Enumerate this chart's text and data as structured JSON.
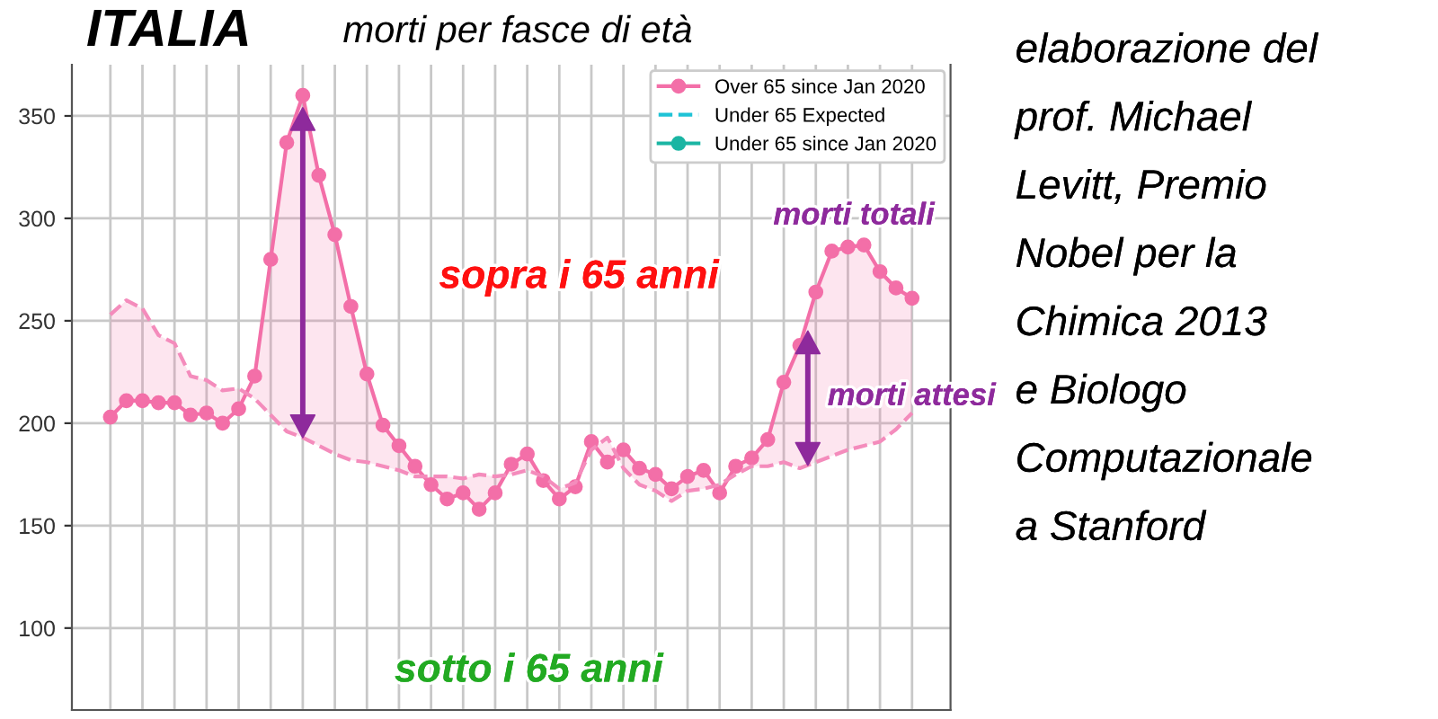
{
  "chart_data": {
    "type": "line",
    "title": "ITALIA",
    "subtitle": "morti per fasce di età",
    "categories": [
      null,
      null,
      null,
      null,
      null,
      null,
      null,
      null,
      null,
      null,
      null,
      null,
      null,
      null,
      null,
      null,
      null,
      null,
      null,
      null,
      null,
      null,
      null,
      null,
      null,
      null,
      null,
      null,
      null,
      null,
      null,
      null,
      null,
      null,
      null,
      null,
      null,
      null,
      null,
      null,
      null,
      null,
      null,
      null,
      null,
      null,
      null,
      null,
      null,
      null,
      null
    ],
    "series": [
      {
        "name": "Over 65 since Jan 2020",
        "color": "#f36fa8",
        "marker": "circle",
        "line_style": "solid",
        "values": [
          203,
          211,
          211,
          210,
          210,
          204,
          205,
          200,
          207,
          223,
          280,
          337,
          360,
          321,
          292,
          257,
          224,
          199,
          189,
          179,
          170,
          163,
          166,
          158,
          166,
          180,
          185,
          172,
          163,
          169,
          191,
          181,
          187,
          178,
          175,
          168,
          174,
          177,
          166,
          179,
          183,
          192,
          220,
          238,
          264,
          284,
          286,
          287,
          274,
          266,
          261
        ],
        "lower": [
          253,
          260,
          256,
          243,
          239,
          223,
          221,
          216,
          217,
          212,
          204,
          196,
          193,
          189,
          185,
          182,
          181,
          179,
          177,
          174,
          174,
          174,
          173,
          175,
          174,
          175,
          177,
          174,
          168,
          171,
          187,
          193,
          178,
          170,
          167,
          162,
          167,
          168,
          170,
          175,
          179,
          179,
          181,
          178,
          181,
          184,
          187,
          189,
          191,
          197,
          205
        ],
        "upper": [
          203,
          211,
          211,
          210,
          210,
          204,
          205,
          200,
          207,
          223,
          280,
          337,
          360,
          321,
          292,
          257,
          224,
          199,
          189,
          179,
          170,
          163,
          166,
          158,
          166,
          180,
          185,
          172,
          163,
          169,
          191,
          181,
          187,
          178,
          175,
          168,
          174,
          177,
          166,
          179,
          183,
          192,
          220,
          238,
          264,
          284,
          286,
          287,
          274,
          266,
          261
        ]
      },
      {
        "color": "#f48cbc",
        "marker": "none",
        "line_style": "dashed",
        "values": [
          253,
          260,
          256,
          243,
          239,
          223,
          221,
          216,
          217,
          212,
          204,
          196,
          193,
          189,
          185,
          182,
          181,
          179,
          177,
          174,
          174,
          174,
          173,
          175,
          174,
          175,
          177,
          174,
          168,
          171,
          187,
          193,
          178,
          170,
          167,
          162,
          167,
          168,
          170,
          175,
          179,
          179,
          181,
          178,
          181,
          184,
          187,
          189,
          191,
          197,
          205
        ]
      },
      {
        "name": "Under 65 Expected",
        "color": "#1fc3d6",
        "marker": "none",
        "line_style": "dashed",
        "values": [
          null,
          null,
          null,
          null,
          null,
          null,
          null,
          null,
          null,
          null,
          null,
          null,
          null,
          null,
          null,
          null,
          null,
          null,
          null,
          null,
          null,
          null,
          null,
          null,
          null,
          null,
          null,
          null,
          null,
          null,
          null,
          null,
          null,
          null,
          null,
          null,
          null,
          null,
          null,
          null,
          null,
          null,
          null,
          null,
          null,
          null,
          null,
          null,
          null,
          null,
          null
        ]
      },
      {
        "name": "Under 65 since Jan 2020",
        "color": "#1ab5a3",
        "marker": "circle",
        "line_style": "solid",
        "values": [
          null,
          null,
          null,
          null,
          null,
          null,
          null,
          null,
          null,
          null,
          null,
          null,
          null,
          null,
          null,
          null,
          null,
          null,
          null,
          null,
          null,
          null,
          null,
          null,
          null,
          null,
          null,
          null,
          null,
          null,
          null,
          null,
          null,
          null,
          null,
          null,
          null,
          null,
          null,
          null,
          null,
          null,
          null,
          null,
          null,
          null,
          null,
          null,
          null,
          null,
          null
        ]
      }
    ],
    "ylim": [
      60,
      375
    ],
    "yticks": [
      100,
      150,
      200,
      250,
      300,
      350
    ],
    "tick_labels": "y",
    "grid": true,
    "legend": "top right",
    "annotations": [
      "sopra i 65 anni",
      "morti totali",
      "morti attesi",
      "sotto i 65 anni",
      "elaborazione del\nprof. Michael\nLevitt, Premio\nNobel per la\nChimica 2013\ne Biologo\nComputazionale\na Stanford"
    ]
  }
}
